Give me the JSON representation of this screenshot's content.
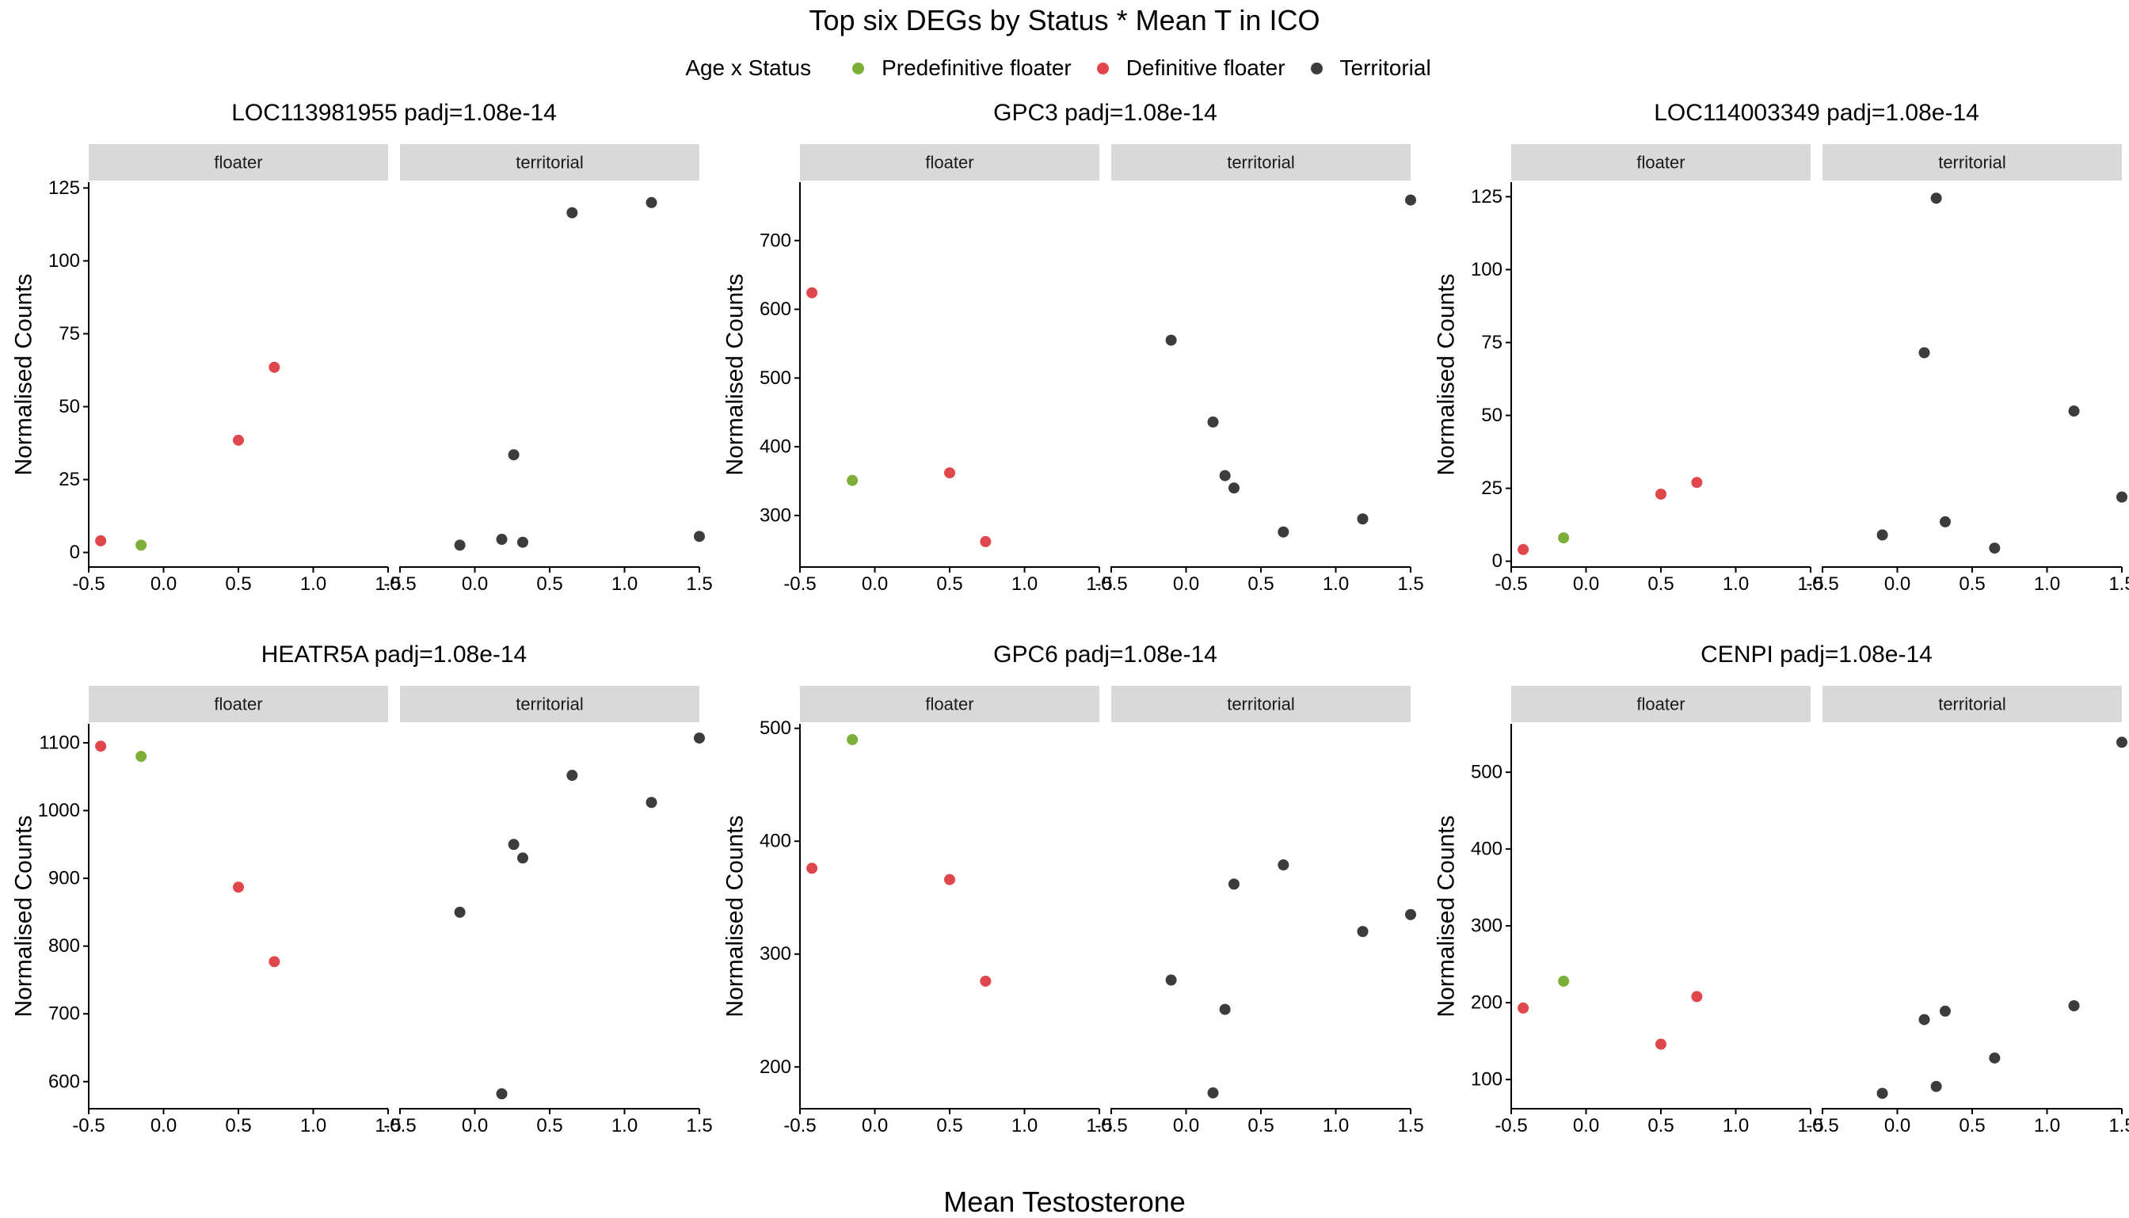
{
  "title": "Top six DEGs by Status * Mean T in ICO",
  "legend": {
    "title": "Age x Status",
    "placement": "top",
    "items": [
      {
        "key": "pre",
        "label": "Predefinitive floater",
        "color": "#7CAE3A"
      },
      {
        "key": "def",
        "label": "Definitive floater",
        "color": "#E0474C"
      },
      {
        "key": "ter",
        "label": "Territorial",
        "color": "#3C3C3C"
      }
    ]
  },
  "x_title": "Mean Testosterone",
  "y_title": "Normalised Counts",
  "facets": [
    "floater",
    "territorial"
  ],
  "x_ticks": [
    -0.5,
    0.0,
    0.5,
    1.0,
    1.5
  ],
  "x_tick_labels": [
    "-0.5",
    "0.0",
    "0.5",
    "1.0",
    "1.5"
  ],
  "colors": {
    "strip_bg": "#D9D9D9",
    "axis": "#000000"
  },
  "chart_data": [
    {
      "type": "scatter",
      "title": "LOC113981955 padj=1.08e-14",
      "xlim": [
        -0.5,
        1.5
      ],
      "ylim": [
        -5,
        127
      ],
      "y_ticks": [
        0,
        25,
        50,
        75,
        100,
        125
      ],
      "y_tick_labels": [
        "0",
        "25",
        "50",
        "75",
        "100",
        "125"
      ],
      "floater": [
        {
          "x": -0.42,
          "y": 4,
          "g": "def"
        },
        {
          "x": -0.15,
          "y": 2.5,
          "g": "pre"
        },
        {
          "x": 0.5,
          "y": 38.5,
          "g": "def"
        },
        {
          "x": 0.74,
          "y": 63.5,
          "g": "def"
        }
      ],
      "territorial": [
        {
          "x": -0.1,
          "y": 2.5,
          "g": "ter"
        },
        {
          "x": 0.18,
          "y": 4.5,
          "g": "ter"
        },
        {
          "x": 0.26,
          "y": 33.5,
          "g": "ter"
        },
        {
          "x": 0.32,
          "y": 3.5,
          "g": "ter"
        },
        {
          "x": 0.65,
          "y": 116.5,
          "g": "ter"
        },
        {
          "x": 1.18,
          "y": 120,
          "g": "ter"
        },
        {
          "x": 1.5,
          "y": 5.5,
          "g": "ter"
        }
      ]
    },
    {
      "type": "scatter",
      "title": "GPC3 padj=1.08e-14",
      "xlim": [
        -0.5,
        1.5
      ],
      "ylim": [
        225,
        785
      ],
      "y_ticks": [
        300,
        400,
        500,
        600,
        700
      ],
      "y_tick_labels": [
        "300",
        "400",
        "500",
        "600",
        "700"
      ],
      "floater": [
        {
          "x": -0.42,
          "y": 624,
          "g": "def"
        },
        {
          "x": -0.15,
          "y": 351,
          "g": "pre"
        },
        {
          "x": 0.5,
          "y": 362,
          "g": "def"
        },
        {
          "x": 0.74,
          "y": 262,
          "g": "def"
        }
      ],
      "territorial": [
        {
          "x": -0.1,
          "y": 555,
          "g": "ter"
        },
        {
          "x": 0.18,
          "y": 436,
          "g": "ter"
        },
        {
          "x": 0.26,
          "y": 358,
          "g": "ter"
        },
        {
          "x": 0.32,
          "y": 340,
          "g": "ter"
        },
        {
          "x": 0.65,
          "y": 276,
          "g": "ter"
        },
        {
          "x": 1.18,
          "y": 295,
          "g": "ter"
        },
        {
          "x": 1.5,
          "y": 759,
          "g": "ter"
        }
      ]
    },
    {
      "type": "scatter",
      "title": "LOC114003349 padj=1.08e-14",
      "xlim": [
        -0.5,
        1.5
      ],
      "ylim": [
        -2,
        130
      ],
      "y_ticks": [
        0,
        25,
        50,
        75,
        100,
        125
      ],
      "y_tick_labels": [
        "0",
        "25",
        "50",
        "75",
        "100",
        "125"
      ],
      "floater": [
        {
          "x": -0.42,
          "y": 4,
          "g": "def"
        },
        {
          "x": -0.15,
          "y": 8,
          "g": "pre"
        },
        {
          "x": 0.5,
          "y": 23,
          "g": "def"
        },
        {
          "x": 0.74,
          "y": 27,
          "g": "def"
        }
      ],
      "territorial": [
        {
          "x": -0.1,
          "y": 9,
          "g": "ter"
        },
        {
          "x": 0.18,
          "y": 71.5,
          "g": "ter"
        },
        {
          "x": 0.26,
          "y": 124.5,
          "g": "ter"
        },
        {
          "x": 0.32,
          "y": 13.5,
          "g": "ter"
        },
        {
          "x": 0.65,
          "y": 4.5,
          "g": "ter"
        },
        {
          "x": 1.18,
          "y": 51.5,
          "g": "ter"
        },
        {
          "x": 1.5,
          "y": 22,
          "g": "ter"
        }
      ]
    },
    {
      "type": "scatter",
      "title": "HEATR5A padj=1.08e-14",
      "xlim": [
        -0.5,
        1.5
      ],
      "ylim": [
        560,
        1128
      ],
      "y_ticks": [
        600,
        700,
        800,
        900,
        1000,
        1100
      ],
      "y_tick_labels": [
        "600",
        "700",
        "800",
        "900",
        "1000",
        "1100"
      ],
      "floater": [
        {
          "x": -0.42,
          "y": 1095,
          "g": "def"
        },
        {
          "x": -0.15,
          "y": 1080,
          "g": "pre"
        },
        {
          "x": 0.5,
          "y": 887,
          "g": "def"
        },
        {
          "x": 0.74,
          "y": 777,
          "g": "def"
        }
      ],
      "territorial": [
        {
          "x": -0.1,
          "y": 850,
          "g": "ter"
        },
        {
          "x": 0.18,
          "y": 582,
          "g": "ter"
        },
        {
          "x": 0.26,
          "y": 950,
          "g": "ter"
        },
        {
          "x": 0.32,
          "y": 930,
          "g": "ter"
        },
        {
          "x": 0.65,
          "y": 1052,
          "g": "ter"
        },
        {
          "x": 1.18,
          "y": 1012,
          "g": "ter"
        },
        {
          "x": 1.5,
          "y": 1107,
          "g": "ter"
        }
      ]
    },
    {
      "type": "scatter",
      "title": "GPC6 padj=1.08e-14",
      "xlim": [
        -0.5,
        1.5
      ],
      "ylim": [
        163,
        504
      ],
      "y_ticks": [
        200,
        300,
        400,
        500
      ],
      "y_tick_labels": [
        "200",
        "300",
        "400",
        "500"
      ],
      "floater": [
        {
          "x": -0.42,
          "y": 376,
          "g": "def"
        },
        {
          "x": -0.15,
          "y": 490,
          "g": "pre"
        },
        {
          "x": 0.5,
          "y": 366,
          "g": "def"
        },
        {
          "x": 0.74,
          "y": 276,
          "g": "def"
        }
      ],
      "territorial": [
        {
          "x": -0.1,
          "y": 277,
          "g": "ter"
        },
        {
          "x": 0.18,
          "y": 177,
          "g": "ter"
        },
        {
          "x": 0.26,
          "y": 251,
          "g": "ter"
        },
        {
          "x": 0.32,
          "y": 362,
          "g": "ter"
        },
        {
          "x": 0.65,
          "y": 379,
          "g": "ter"
        },
        {
          "x": 1.18,
          "y": 320,
          "g": "ter"
        },
        {
          "x": 1.5,
          "y": 335,
          "g": "ter"
        }
      ]
    },
    {
      "type": "scatter",
      "title": "CENPI padj=1.08e-14",
      "xlim": [
        -0.5,
        1.5
      ],
      "ylim": [
        62,
        563
      ],
      "y_ticks": [
        100,
        200,
        300,
        400,
        500
      ],
      "y_tick_labels": [
        "100",
        "200",
        "300",
        "400",
        "500"
      ],
      "floater": [
        {
          "x": -0.42,
          "y": 193,
          "g": "def"
        },
        {
          "x": -0.15,
          "y": 228,
          "g": "pre"
        },
        {
          "x": 0.5,
          "y": 146,
          "g": "def"
        },
        {
          "x": 0.74,
          "y": 208,
          "g": "def"
        }
      ],
      "territorial": [
        {
          "x": -0.1,
          "y": 82,
          "g": "ter"
        },
        {
          "x": 0.18,
          "y": 178,
          "g": "ter"
        },
        {
          "x": 0.26,
          "y": 91,
          "g": "ter"
        },
        {
          "x": 0.32,
          "y": 189,
          "g": "ter"
        },
        {
          "x": 0.65,
          "y": 128,
          "g": "ter"
        },
        {
          "x": 1.18,
          "y": 196,
          "g": "ter"
        },
        {
          "x": 1.5,
          "y": 539,
          "g": "ter"
        }
      ]
    }
  ]
}
